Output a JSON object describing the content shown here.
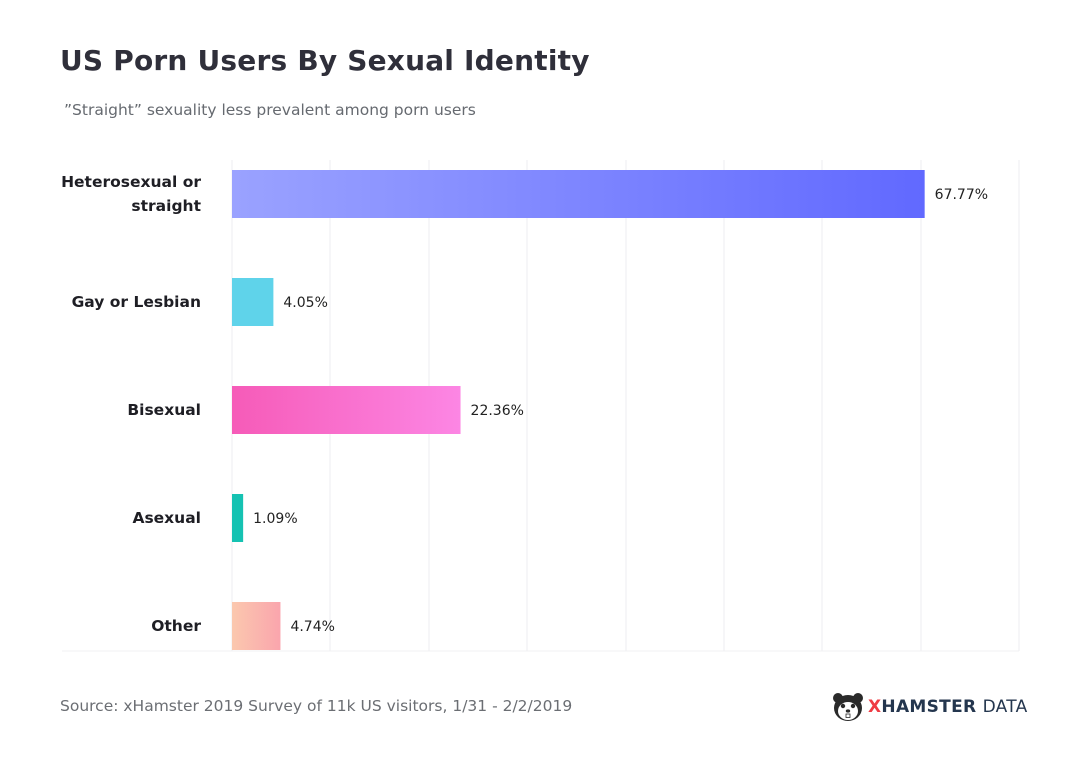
{
  "title": "US Porn Users By Sexual Identity",
  "subtitle": "”Straight” sexuality less prevalent among porn users",
  "source": "Source: xHamster 2019 Survey of 11k US visitors, 1/31 - 2/2/2019",
  "brand": {
    "x": "X",
    "name": "HAMSTER",
    "data": "DATA",
    "logo_icon": "hamster-face-icon"
  },
  "chart_data": {
    "type": "bar",
    "orientation": "horizontal",
    "categories": [
      "Heterosexual or straight",
      "Gay or Lesbian",
      "Bisexual",
      "Asexual",
      "Other"
    ],
    "values": [
      67.77,
      4.05,
      22.36,
      1.09,
      4.74
    ],
    "value_labels": [
      "67.77%",
      "4.05%",
      "22.36%",
      "1.09%",
      "4.74%"
    ],
    "unit": "%",
    "xlim": [
      0,
      77
    ],
    "grid": "vertical gridlines on",
    "legend": "none",
    "colors": [
      [
        "#9aa2ff",
        "#6169ff"
      ],
      [
        "#5fd3ea",
        "#5fd3ea"
      ],
      [
        "#f65bb8",
        "#fc86e4"
      ],
      [
        "#15c2b2",
        "#15c2b2"
      ],
      [
        "#fbc8ae",
        "#faa5ad"
      ]
    ]
  }
}
